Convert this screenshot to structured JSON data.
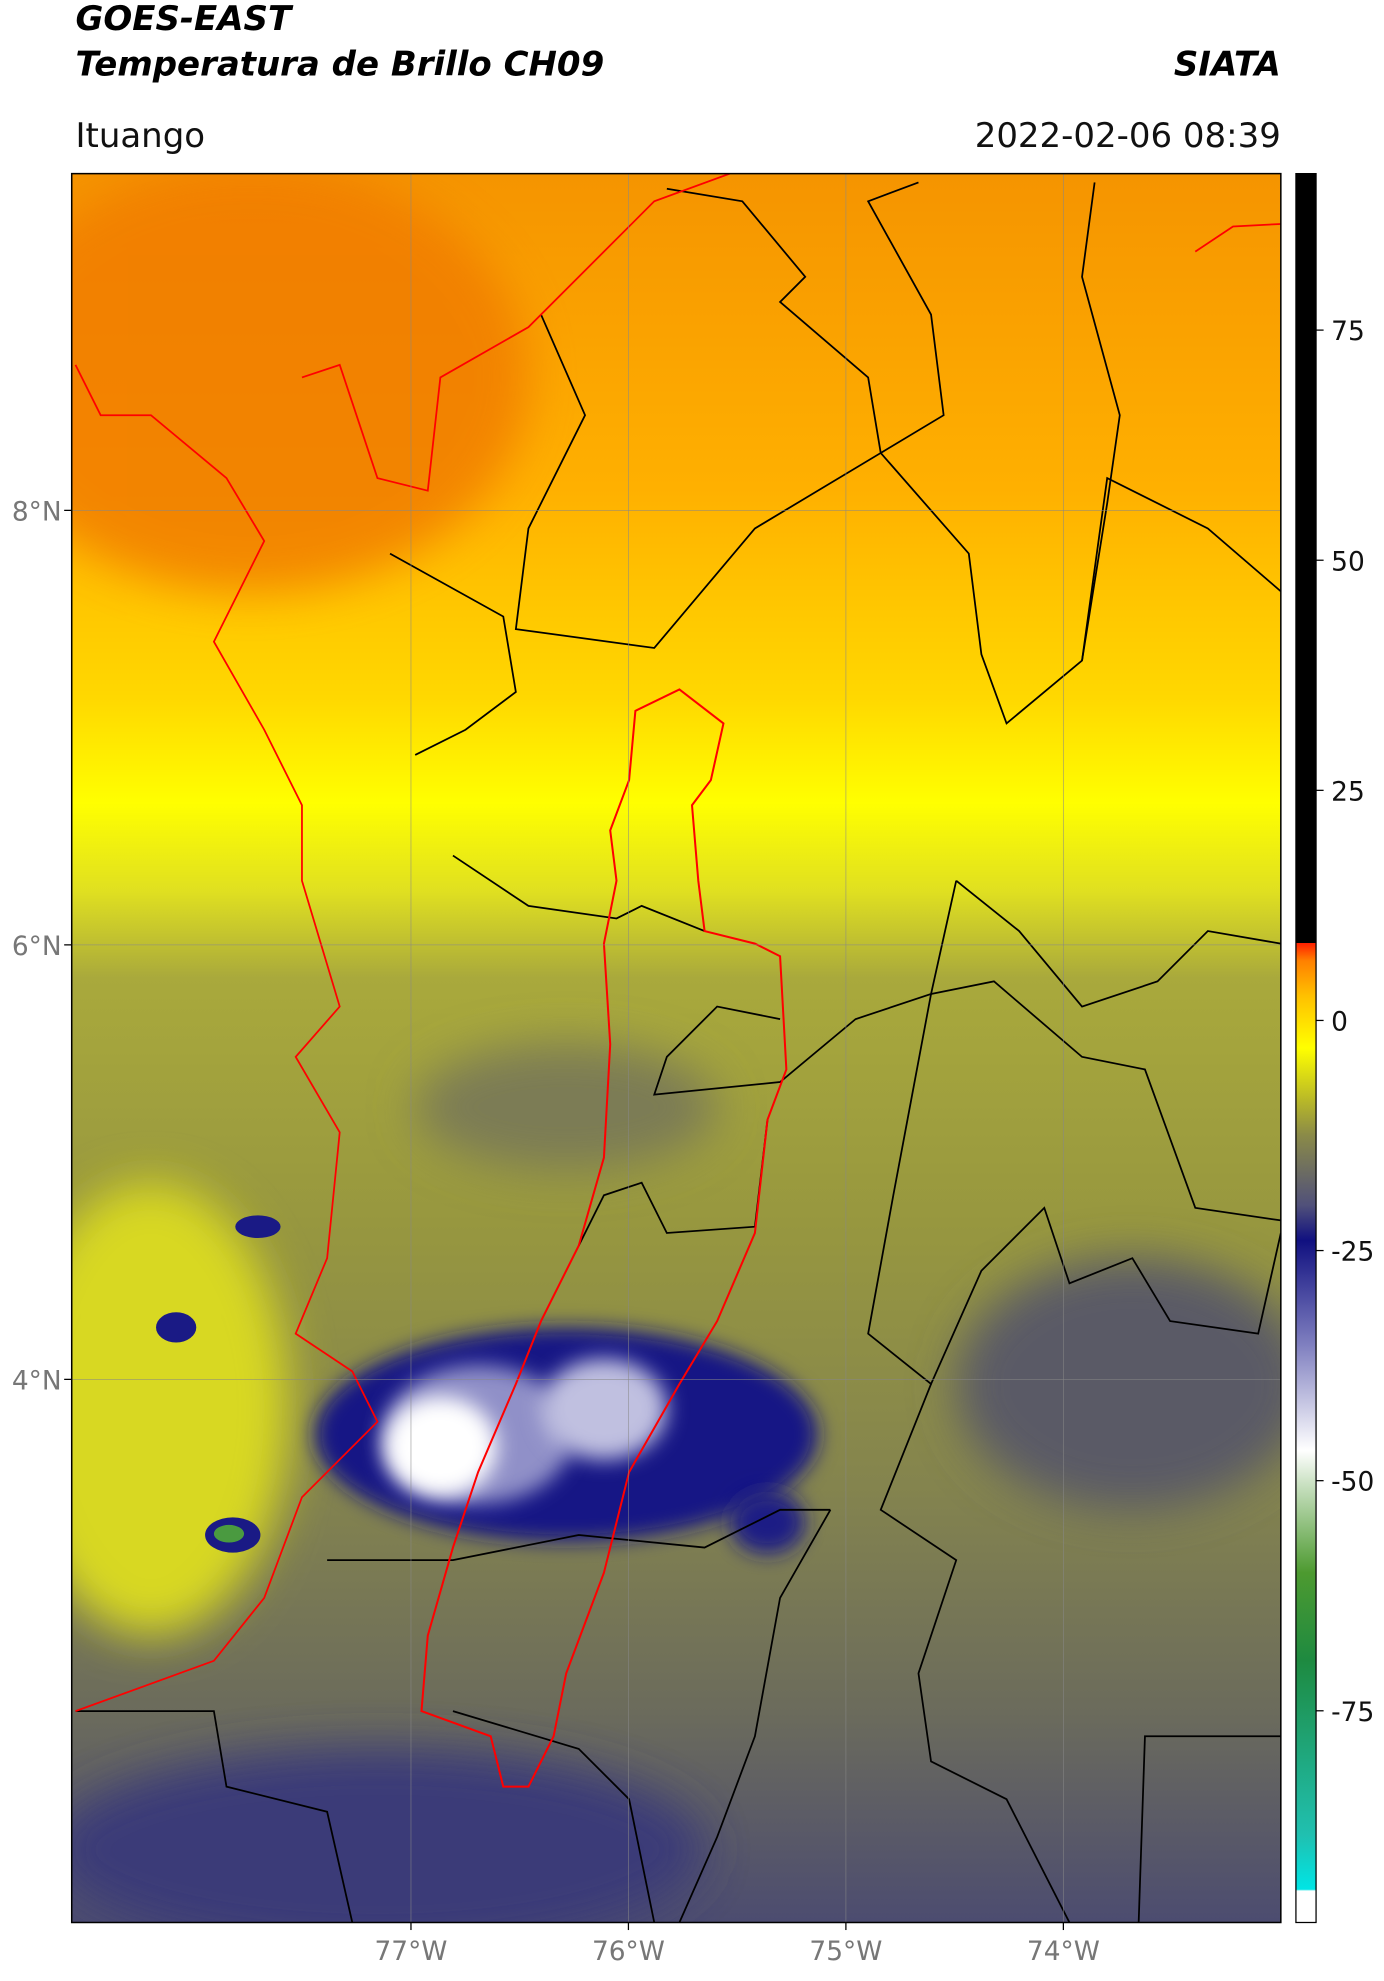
{
  "header": {
    "satellite": "GOES-EAST",
    "product": "Temperatura de Brillo CH09",
    "agency": "SIATA",
    "region": "Ituango",
    "timestamp": "2022-02-06 08:39"
  },
  "map": {
    "xlim": [
      -78.56,
      -73.0
    ],
    "ylim": [
      1.5,
      9.55
    ],
    "xticks": [
      {
        "value": -77,
        "label": "77°W"
      },
      {
        "value": -76,
        "label": "76°W"
      },
      {
        "value": -75,
        "label": "75°W"
      },
      {
        "value": -74,
        "label": "74°W"
      }
    ],
    "yticks": [
      {
        "value": 4,
        "label": "4°N"
      },
      {
        "value": 6,
        "label": "6°N"
      },
      {
        "value": 8,
        "label": "8°N"
      }
    ],
    "grid": true,
    "colorbar": {
      "clim": [
        -98,
        92
      ],
      "ticks": [
        -75,
        -50,
        -25,
        0,
        25,
        50,
        75
      ]
    }
  }
}
